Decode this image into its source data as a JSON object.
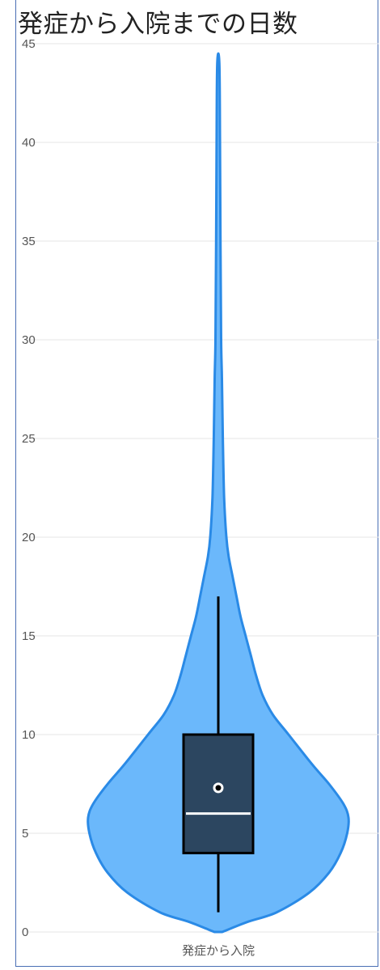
{
  "chart_data": {
    "type": "violin",
    "title": "発症から入院までの日数",
    "categories": [
      "発症から入院"
    ],
    "ylim": [
      0,
      45
    ],
    "yticks": [
      0,
      5,
      10,
      15,
      20,
      25,
      30,
      35,
      40,
      45
    ],
    "grid": true,
    "violin": {
      "min": 0,
      "max": 44,
      "density_profile": [
        [
          0.0,
          0.03
        ],
        [
          0.5,
          0.22
        ],
        [
          1.0,
          0.45
        ],
        [
          2.0,
          0.7
        ],
        [
          3.0,
          0.85
        ],
        [
          4.0,
          0.94
        ],
        [
          5.0,
          0.99
        ],
        [
          5.8,
          1.0
        ],
        [
          6.5,
          0.96
        ],
        [
          7.5,
          0.85
        ],
        [
          8.5,
          0.72
        ],
        [
          10.0,
          0.54
        ],
        [
          11.0,
          0.42
        ],
        [
          12.0,
          0.34
        ],
        [
          13.0,
          0.29
        ],
        [
          14.0,
          0.25
        ],
        [
          15.0,
          0.21
        ],
        [
          16.0,
          0.17
        ],
        [
          17.0,
          0.14
        ],
        [
          18.0,
          0.11
        ],
        [
          19.0,
          0.08
        ],
        [
          20.0,
          0.062
        ],
        [
          22.0,
          0.045
        ],
        [
          25.0,
          0.035
        ],
        [
          28.0,
          0.028
        ],
        [
          30.0,
          0.022
        ],
        [
          35.0,
          0.017
        ],
        [
          40.0,
          0.013
        ],
        [
          44.0,
          0.008
        ]
      ]
    },
    "box": {
      "q1": 4,
      "median": 6,
      "q3": 10,
      "whisker_low": 1,
      "whisker_high": 17,
      "mean": 7.3
    },
    "colors": {
      "fill": "#6bb8fb",
      "stroke": "#2a8ae6",
      "box": "#2c4660",
      "grid": "#e6e6e6"
    }
  }
}
